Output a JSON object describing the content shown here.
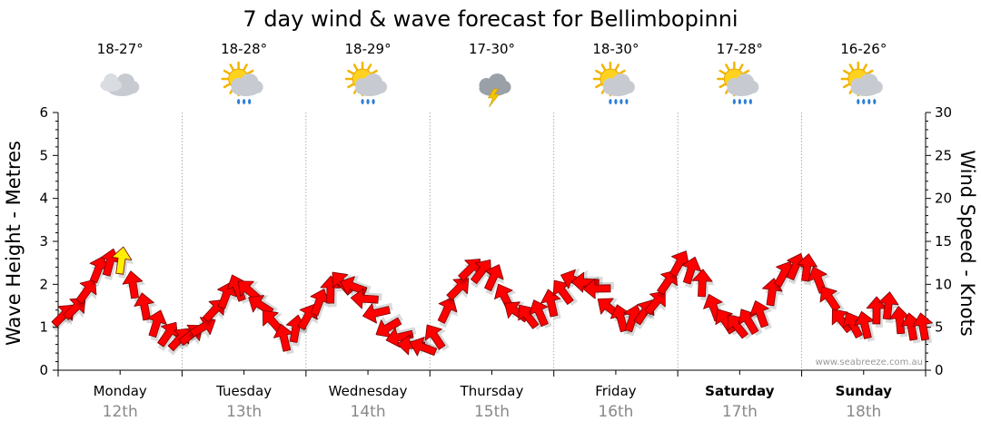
{
  "chart_data": {
    "type": "line",
    "title": "7 day wind & wave forecast for Bellimbopinni",
    "ylabel_left": "Wave Height - Metres",
    "ylabel_right": "Wind Speed - Knots",
    "ylim_left": [
      0,
      6
    ],
    "ylim_right": [
      0,
      30
    ],
    "yticks_left": [
      "0",
      "1",
      "2",
      "3",
      "4",
      "5",
      "6"
    ],
    "yticks_right": [
      "0",
      "5",
      "10",
      "15",
      "20",
      "25",
      "30"
    ],
    "grid": true,
    "credit": "www.seabreeze.com.au",
    "days": [
      {
        "name": "Monday",
        "date": "12th",
        "temp": "18-27°",
        "weather": "cloudy",
        "bold": false
      },
      {
        "name": "Tuesday",
        "date": "13th",
        "temp": "18-28°",
        "weather": "sun-showers",
        "bold": false
      },
      {
        "name": "Wednesday",
        "date": "14th",
        "temp": "18-29°",
        "weather": "sun-showers",
        "bold": false
      },
      {
        "name": "Thursday",
        "date": "15th",
        "temp": "17-30°",
        "weather": "storm",
        "bold": false
      },
      {
        "name": "Friday",
        "date": "16th",
        "temp": "18-30°",
        "weather": "sun-rain",
        "bold": false
      },
      {
        "name": "Saturday",
        "date": "17th",
        "temp": "17-28°",
        "weather": "sun-rain",
        "bold": true
      },
      {
        "name": "Sunday",
        "date": "18th",
        "temp": "16-26°",
        "weather": "sun-rain",
        "bold": true
      }
    ],
    "wind_series": {
      "name": "Wind Speed (knots)",
      "hours": [
        0,
        4,
        8,
        12,
        16,
        20,
        24,
        28,
        32,
        36,
        40,
        44,
        48,
        52,
        56,
        60,
        64,
        68,
        72,
        76,
        80,
        84,
        88,
        92,
        96,
        100,
        104,
        108,
        112,
        116,
        120,
        124,
        128,
        132,
        136,
        140,
        144,
        148,
        152,
        156,
        160,
        164,
        168
      ],
      "speed": [
        6,
        7.5,
        12,
        13,
        8,
        4.5,
        3.5,
        5,
        8.5,
        10,
        7,
        3.5,
        6,
        9,
        10.5,
        8,
        5,
        3,
        2.5,
        8,
        12,
        11,
        7,
        6,
        8,
        10.5,
        10,
        6,
        6,
        8,
        12.5,
        11,
        6,
        5,
        6.5,
        11,
        12.5,
        10,
        5.5,
        5,
        8,
        5,
        5
      ],
      "direction_deg": [
        45,
        45,
        20,
        10,
        340,
        30,
        45,
        60,
        30,
        315,
        300,
        350,
        30,
        15,
        300,
        270,
        240,
        270,
        300,
        45,
        45,
        30,
        300,
        330,
        350,
        290,
        260,
        330,
        30,
        40,
        30,
        10,
        330,
        320,
        340,
        30,
        20,
        330,
        320,
        345,
        10,
        350,
        350
      ]
    }
  }
}
